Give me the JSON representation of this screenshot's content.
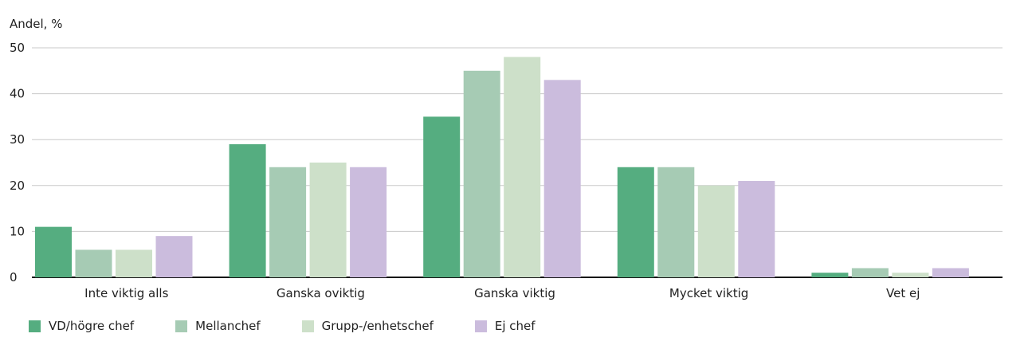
{
  "chart_data": {
    "type": "bar",
    "ylabel": "Andel, %",
    "ylim": [
      0,
      50
    ],
    "yticks": [
      0,
      10,
      20,
      30,
      40,
      50
    ],
    "grid": true,
    "categories": [
      "Inte viktig alls",
      "Ganska oviktig",
      "Ganska viktig",
      "Mycket viktig",
      "Vet ej"
    ],
    "series": [
      {
        "name": "VD/högre chef",
        "color": "#55ad80",
        "values": [
          11,
          29,
          35,
          24,
          1
        ]
      },
      {
        "name": "Mellanchef",
        "color": "#a6cbb4",
        "values": [
          6,
          24,
          45,
          24,
          2
        ]
      },
      {
        "name": "Grupp-/enhetschef",
        "color": "#cde0c9",
        "values": [
          6,
          25,
          48,
          20,
          1
        ]
      },
      {
        "name": "Ej chef",
        "color": "#cbbcdd",
        "values": [
          9,
          24,
          43,
          21,
          2
        ]
      }
    ],
    "legend_position": "bottom-left"
  }
}
